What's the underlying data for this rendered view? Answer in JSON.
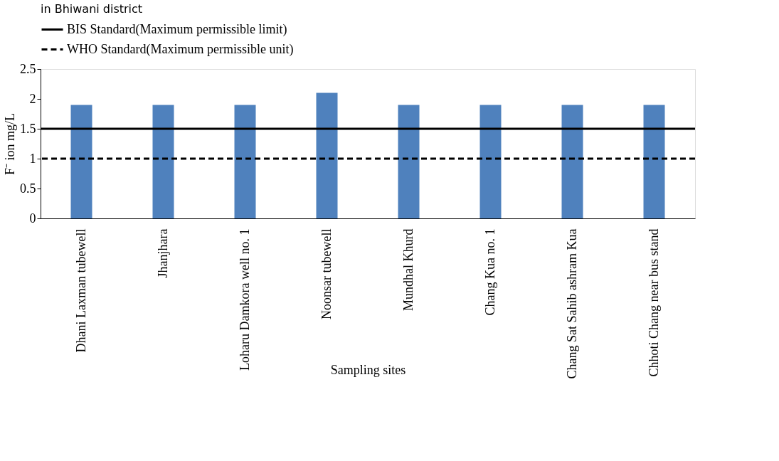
{
  "chart_data": {
    "type": "bar",
    "title": "in Bhiwani district",
    "xlabel": "Sampling sites",
    "ylabel": "F⁻ ion mg/L",
    "categories": [
      "Dhani Laxman tubewell",
      "Jhanjhara",
      "Loharu Damkora well no. 1",
      "Noonsar tubewell",
      "Mundhal Khurd",
      "Chang Kua no. 1",
      "Chang Sat Sahib ashram Kua",
      "Chhoti Chang near bus stand"
    ],
    "values": [
      1.9,
      1.9,
      1.9,
      2.1,
      1.9,
      1.9,
      1.9,
      1.9
    ],
    "color": "#4f81bd",
    "ylim": [
      0,
      2.5
    ],
    "yticks": [
      0,
      0.5,
      1,
      1.5,
      2,
      2.5
    ],
    "grid": false,
    "legend": "top",
    "ref_lines": [
      {
        "axis": "y",
        "value": 1.5,
        "label": "BIS Standard(Maximum permissible limit)",
        "color": "#000000",
        "line_style": "solid"
      },
      {
        "axis": "y",
        "value": 1,
        "label": "WHO Standard(Maximum permissible unit)",
        "color": "#000000",
        "line_style": "dashed"
      }
    ]
  }
}
